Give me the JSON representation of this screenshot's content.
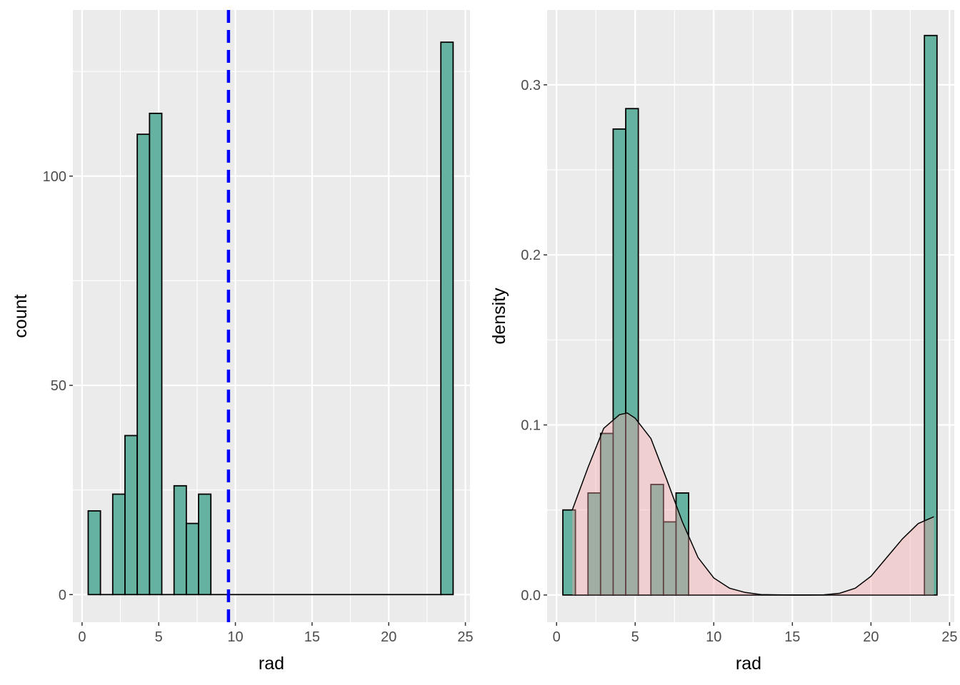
{
  "chart_data": [
    {
      "type": "bar",
      "subtype": "histogram",
      "xlabel": "rad",
      "ylabel": "count",
      "xlim": [
        -0.6,
        25.3
      ],
      "ylim": [
        -6.6,
        139.7
      ],
      "x_ticks": [
        0,
        5,
        10,
        15,
        20,
        25
      ],
      "y_ticks": [
        0,
        50,
        100
      ],
      "grid": true,
      "bar_fill": "#66b2a0",
      "bar_outline": "#000000",
      "panel_bg": "#ebebeb",
      "bins": [
        {
          "x0": 0.4,
          "x1": 1.2,
          "count": 20
        },
        {
          "x0": 1.2,
          "x1": 2.0,
          "count": 0
        },
        {
          "x0": 2.0,
          "x1": 2.8,
          "count": 24
        },
        {
          "x0": 2.8,
          "x1": 3.6,
          "count": 38
        },
        {
          "x0": 3.6,
          "x1": 4.4,
          "count": 110
        },
        {
          "x0": 4.4,
          "x1": 5.2,
          "count": 115
        },
        {
          "x0": 5.2,
          "x1": 6.0,
          "count": 0
        },
        {
          "x0": 6.0,
          "x1": 6.8,
          "count": 26
        },
        {
          "x0": 6.8,
          "x1": 7.6,
          "count": 17
        },
        {
          "x0": 7.6,
          "x1": 8.4,
          "count": 24
        },
        {
          "x0": 8.4,
          "x1": 23.4,
          "count": 0
        },
        {
          "x0": 23.4,
          "x1": 24.2,
          "count": 132
        }
      ],
      "vline": {
        "x": 9.55,
        "color": "#0000ff",
        "style": "dashed"
      }
    },
    {
      "type": "bar",
      "subtype": "histogram-density",
      "xlabel": "rad",
      "ylabel": "density",
      "xlim": [
        -0.6,
        25.3
      ],
      "ylim": [
        -0.016,
        0.344
      ],
      "x_ticks": [
        0,
        5,
        10,
        15,
        20,
        25
      ],
      "y_ticks": [
        "0.0",
        "0.1",
        "0.2",
        "0.3"
      ],
      "grid": true,
      "bar_fill": "#66b2a0",
      "bar_outline": "#000000",
      "panel_bg": "#ebebeb",
      "bins": [
        {
          "x0": 0.4,
          "x1": 1.2,
          "density": 0.05
        },
        {
          "x0": 1.2,
          "x1": 2.0,
          "density": 0
        },
        {
          "x0": 2.0,
          "x1": 2.8,
          "density": 0.06
        },
        {
          "x0": 2.8,
          "x1": 3.6,
          "density": 0.095
        },
        {
          "x0": 3.6,
          "x1": 4.4,
          "density": 0.274
        },
        {
          "x0": 4.4,
          "x1": 5.2,
          "density": 0.286
        },
        {
          "x0": 5.2,
          "x1": 6.0,
          "density": 0
        },
        {
          "x0": 6.0,
          "x1": 6.8,
          "density": 0.065
        },
        {
          "x0": 6.8,
          "x1": 7.6,
          "density": 0.043
        },
        {
          "x0": 7.6,
          "x1": 8.4,
          "density": 0.06
        },
        {
          "x0": 8.4,
          "x1": 23.4,
          "density": 0
        },
        {
          "x0": 23.4,
          "x1": 24.2,
          "density": 0.329
        }
      ],
      "density_curve": {
        "fill": "#f4a6a6",
        "line": "#000000",
        "points": [
          [
            1,
            0.05
          ],
          [
            2,
            0.075
          ],
          [
            3,
            0.098
          ],
          [
            4,
            0.106
          ],
          [
            4.5,
            0.107
          ],
          [
            5,
            0.104
          ],
          [
            6,
            0.092
          ],
          [
            7,
            0.068
          ],
          [
            8,
            0.043
          ],
          [
            9,
            0.022
          ],
          [
            10,
            0.01
          ],
          [
            11,
            0.004
          ],
          [
            12,
            0.0015
          ],
          [
            13,
            0.0003
          ],
          [
            14,
            0.0001
          ],
          [
            15,
            0.0
          ],
          [
            16,
            0.0
          ],
          [
            17,
            0.0001
          ],
          [
            18,
            0.001
          ],
          [
            19,
            0.004
          ],
          [
            20,
            0.011
          ],
          [
            21,
            0.022
          ],
          [
            22,
            0.033
          ],
          [
            23,
            0.042
          ],
          [
            24,
            0.046
          ]
        ]
      }
    }
  ]
}
